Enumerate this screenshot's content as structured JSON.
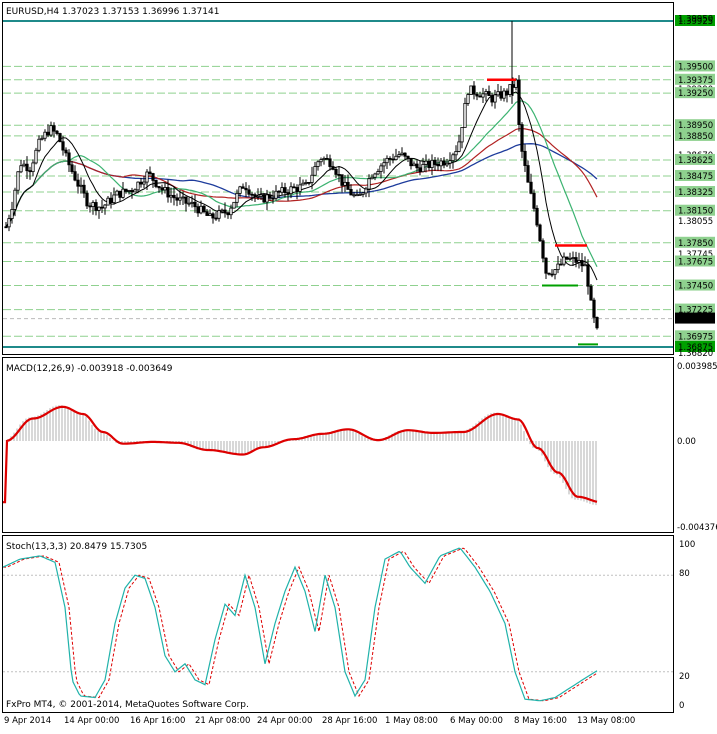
{
  "window": {
    "symbol_line": "EURUSD,H4  1.37023 1.37153 1.36996 1.37141",
    "footer": "FxPro MT4, © 2001-2014, MetaQuotes Software Corp."
  },
  "price_pane": {
    "price_labels": [
      {
        "text": "1.39925",
        "price": 1.39925,
        "boxed": true,
        "color": "#00a000"
      },
      {
        "text": "1.39950",
        "price": 1.3995,
        "boxed": false
      },
      {
        "text": "1.39500",
        "price": 1.395,
        "boxed": true,
        "color": "#8fd18f"
      },
      {
        "text": "1.39375",
        "price": 1.39375,
        "boxed": true,
        "color": "#8fd18f"
      },
      {
        "text": "1.39290",
        "price": 1.3929,
        "boxed": false
      },
      {
        "text": "1.39250",
        "price": 1.3925,
        "boxed": true,
        "color": "#8fd18f"
      },
      {
        "text": "1.38960",
        "price": 1.3896,
        "boxed": false
      },
      {
        "text": "1.38950",
        "price": 1.3895,
        "boxed": true,
        "color": "#8fd18f"
      },
      {
        "text": "1.38850",
        "price": 1.3885,
        "boxed": true,
        "color": "#8fd18f"
      },
      {
        "text": "1.38670",
        "price": 1.3867,
        "boxed": false
      },
      {
        "text": "1.38625",
        "price": 1.38625,
        "boxed": true,
        "color": "#8fd18f"
      },
      {
        "text": "1.38475",
        "price": 1.38475,
        "boxed": true,
        "color": "#8fd18f"
      },
      {
        "text": "1.38325",
        "price": 1.38325,
        "boxed": true,
        "color": "#8fd18f"
      },
      {
        "text": "1.38150",
        "price": 1.3815,
        "boxed": true,
        "color": "#8fd18f"
      },
      {
        "text": "1.38055",
        "price": 1.38055,
        "boxed": false
      },
      {
        "text": "1.37850",
        "price": 1.3785,
        "boxed": true,
        "color": "#8fd18f"
      },
      {
        "text": "1.37745",
        "price": 1.37745,
        "boxed": false
      },
      {
        "text": "1.37675",
        "price": 1.37675,
        "boxed": true,
        "color": "#8fd18f"
      },
      {
        "text": "1.37450",
        "price": 1.3745,
        "boxed": true,
        "color": "#8fd18f"
      },
      {
        "text": "1.37225",
        "price": 1.37225,
        "boxed": true,
        "color": "#8fd18f"
      },
      {
        "text": "1.37141",
        "price": 1.37141,
        "boxed": true,
        "color": "#000000"
      },
      {
        "text": "1.36975",
        "price": 1.36975,
        "boxed": true,
        "color": "#8fd18f"
      },
      {
        "text": "1.36875",
        "price": 1.36875,
        "boxed": true,
        "color": "#00a000"
      },
      {
        "text": "1.36820",
        "price": 1.3682,
        "boxed": false
      }
    ]
  },
  "macd_pane": {
    "title": "MACD(12,26,9) -0.003918 -0.003649",
    "labels": [
      "0.003985",
      "0.00",
      "-0.004376"
    ]
  },
  "stoch_pane": {
    "title": "Stoch(13,3,3) 20.8479 15.7305",
    "labels": [
      "100",
      "80",
      "20",
      "0"
    ]
  },
  "time_axis": [
    "9 Apr 2014",
    "14 Apr 00:00",
    "16 Apr 16:00",
    "21 Apr 08:00",
    "24 Apr 00:00",
    "28 Apr 16:00",
    "1 May 08:00",
    "6 May 00:00",
    "8 May 16:00",
    "13 May 08:00"
  ],
  "colors": {
    "bull": "#000000",
    "bear": "#000000",
    "macd_signal": "#dd0000",
    "histogram": "#b0b0b0",
    "stoch_main": "#20b2aa",
    "stoch_signal": "#dd0000",
    "ma_fast": "#000000",
    "ma_mid": "#3cb371",
    "ma_slow": "#b22222",
    "ma_long": "#1e3c9c",
    "support": "#00a000",
    "resistance": "#ff0000"
  }
}
